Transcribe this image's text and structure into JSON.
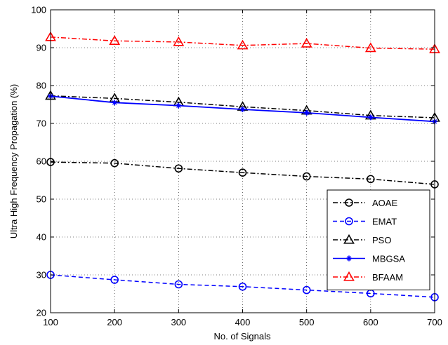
{
  "chart_data": {
    "type": "line",
    "title": "",
    "xlabel": "No. of Signals",
    "ylabel": "Ultra High Frequency Propagation (%)",
    "xlim": [
      100,
      700
    ],
    "ylim": [
      20,
      100
    ],
    "xticks": [
      "100",
      "200",
      "300",
      "400",
      "500",
      "600",
      "700"
    ],
    "yticks": [
      "20",
      "30",
      "40",
      "50",
      "60",
      "70",
      "80",
      "90",
      "100"
    ],
    "grid": true,
    "legend_position": "lower-right",
    "x": [
      100,
      200,
      300,
      400,
      500,
      600,
      700
    ],
    "series": [
      {
        "name": "AOAE",
        "values": [
          59.8,
          59.5,
          58.1,
          57.0,
          56.0,
          55.3,
          53.9
        ],
        "color": "#000000",
        "marker": "circle",
        "dash": "dashdot"
      },
      {
        "name": "EMAT",
        "values": [
          30.0,
          28.7,
          27.5,
          26.9,
          26.0,
          25.1,
          24.1
        ],
        "color": "#0000ff",
        "marker": "circle",
        "dash": "dashed"
      },
      {
        "name": "PSO",
        "values": [
          77.3,
          76.6,
          75.6,
          74.4,
          73.4,
          72.1,
          71.5
        ],
        "color": "#000000",
        "marker": "triangle",
        "dash": "dashdot"
      },
      {
        "name": "MBGSA",
        "values": [
          77.2,
          75.5,
          74.7,
          73.7,
          72.8,
          71.6,
          70.5
        ],
        "color": "#0000ff",
        "marker": "star",
        "dash": "solid"
      },
      {
        "name": "BFAAM",
        "values": [
          92.8,
          91.8,
          91.5,
          90.6,
          91.1,
          89.9,
          89.6
        ],
        "color": "#ff0000",
        "marker": "triangle",
        "dash": "dashdot"
      }
    ]
  }
}
